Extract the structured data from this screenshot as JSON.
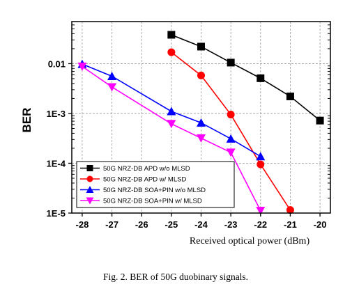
{
  "chart_data": {
    "type": "line",
    "xlabel": "Received optical power (dBm)",
    "ylabel": "BER",
    "x_ticks": [
      -28,
      -27,
      -26,
      -25,
      -24,
      -23,
      -22,
      -21,
      -20
    ],
    "y_ticks": [
      {
        "value": 0.01,
        "label": "0.01"
      },
      {
        "value": 0.001,
        "label": "1E-3"
      },
      {
        "value": 0.0001,
        "label": "1E-4"
      },
      {
        "value": 1e-05,
        "label": "1E-5"
      }
    ],
    "xlim": [
      -28.35,
      -19.65
    ],
    "ylim": [
      1e-05,
      0.07
    ],
    "y_scale": "log",
    "grid": true,
    "legend_position": "bottom-left",
    "series": [
      {
        "name": "50G NRZ-DB APD w/o MLSD",
        "color": "#000000",
        "marker": "square",
        "x": [
          -25,
          -24,
          -23,
          -22,
          -21,
          -20
        ],
        "y": [
          0.038,
          0.022,
          0.0105,
          0.0051,
          0.0022,
          0.00072
        ]
      },
      {
        "name": "50G NRZ-DB APD w/ MLSD",
        "color": "#ff0000",
        "marker": "circle",
        "x": [
          -25,
          -24,
          -23,
          -22,
          -21
        ],
        "y": [
          0.017,
          0.0058,
          0.00095,
          9.5e-05,
          1.15e-05
        ]
      },
      {
        "name": "50G NRZ-DB SOA+PIN w/o MLSD",
        "color": "#0000ff",
        "marker": "triangle-up",
        "x": [
          -28,
          -27,
          -25,
          -24,
          -23,
          -22
        ],
        "y": [
          0.0098,
          0.0056,
          0.0011,
          0.00065,
          0.00031,
          0.000137
        ]
      },
      {
        "name": "50G NRZ-DB SOA+PIN w/ MLSD",
        "color": "#ff00ff",
        "marker": "triangle-down",
        "x": [
          -28,
          -27,
          -25,
          -24,
          -23,
          -22
        ],
        "y": [
          0.0088,
          0.0034,
          0.00062,
          0.00032,
          0.000165,
          1.12e-05
        ]
      }
    ]
  },
  "caption": "Fig. 2. BER of 50G duobinary signals."
}
